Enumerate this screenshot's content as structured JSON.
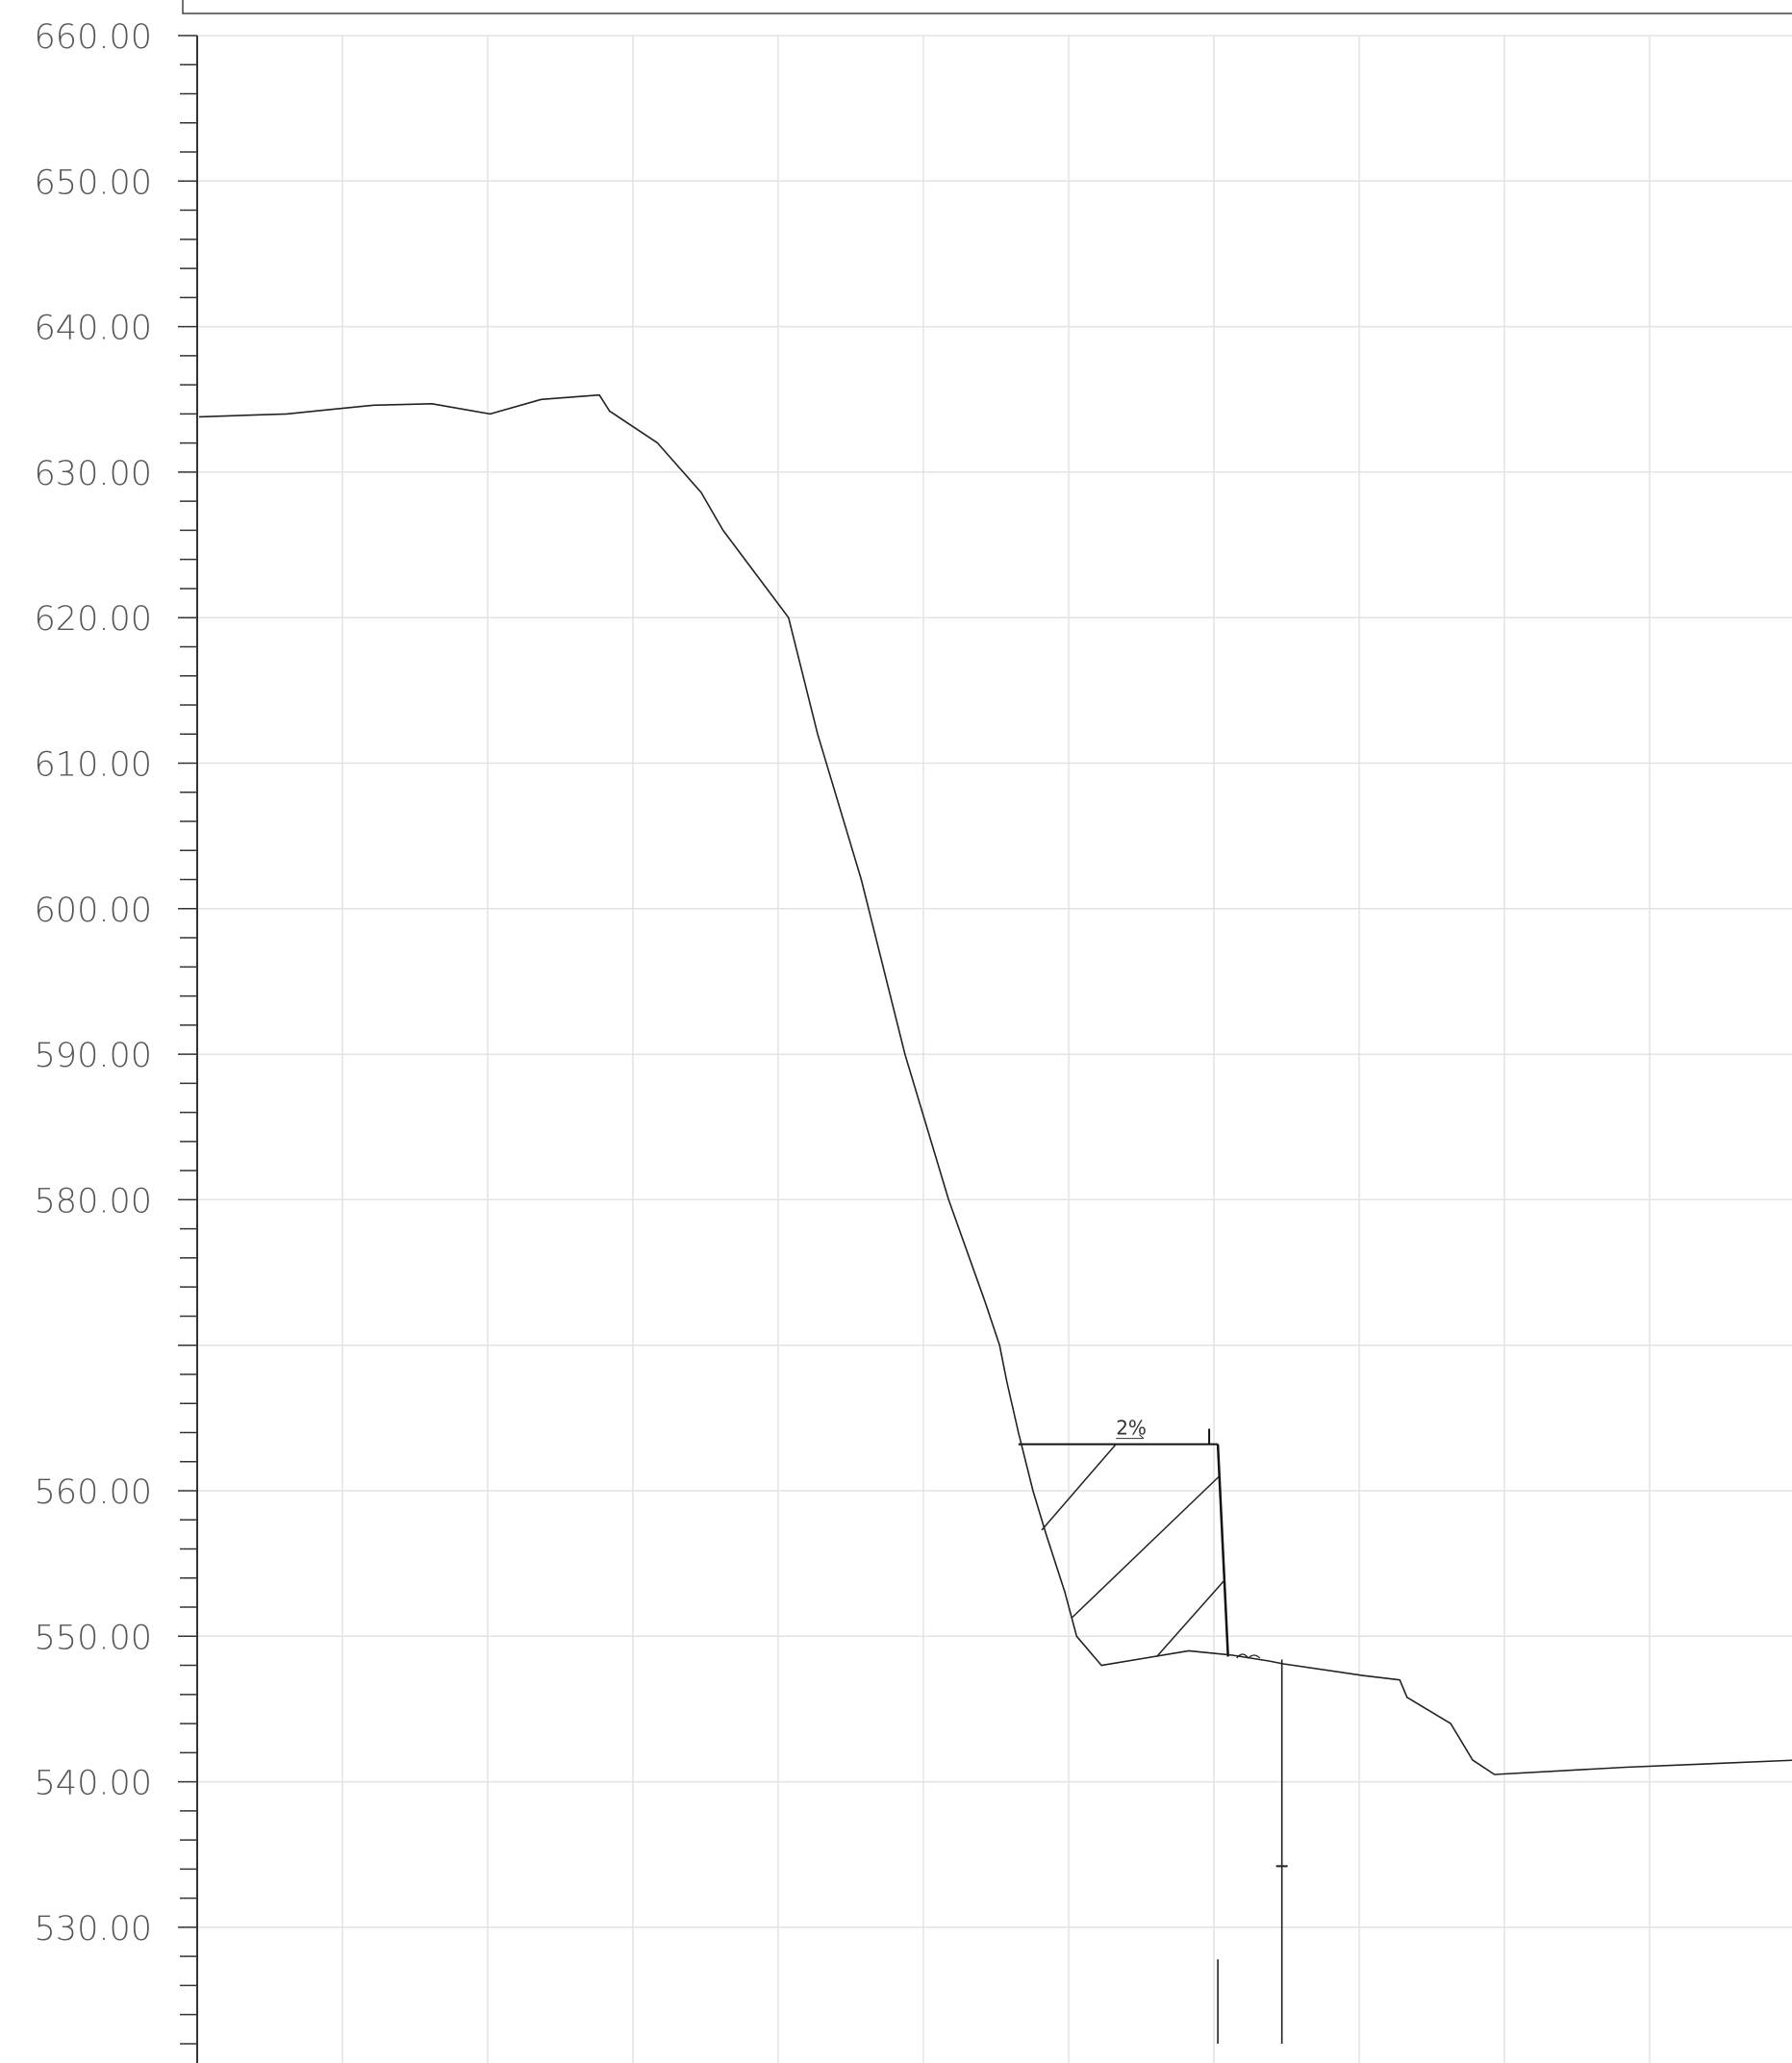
{
  "chart_data": {
    "type": "line",
    "title": "",
    "xlabel": "",
    "ylabel": "",
    "ylim": [
      522,
      662
    ],
    "y_ticks": [
      {
        "value": 660,
        "label": "660.00"
      },
      {
        "value": 650,
        "label": "650.00"
      },
      {
        "value": 640,
        "label": "640.00"
      },
      {
        "value": 630,
        "label": "630.00"
      },
      {
        "value": 620,
        "label": "620.00"
      },
      {
        "value": 610,
        "label": "610.00"
      },
      {
        "value": 600,
        "label": "600.00"
      },
      {
        "value": 590,
        "label": "590.00"
      },
      {
        "value": 580,
        "label": "580.00"
      },
      {
        "value": 570,
        "label": ""
      },
      {
        "value": 560,
        "label": "560.00"
      },
      {
        "value": 550,
        "label": "550.00"
      },
      {
        "value": 540,
        "label": "540.00"
      },
      {
        "value": 530,
        "label": "530.00"
      }
    ],
    "grid": true,
    "series": [
      {
        "points": [
          [
            0,
            633.8
          ],
          [
            6,
            634.0
          ],
          [
            9,
            634.3
          ],
          [
            12,
            634.6
          ],
          [
            16,
            634.7
          ],
          [
            20,
            634.0
          ],
          [
            23.5,
            635.0
          ],
          [
            27.5,
            635.3
          ],
          [
            28.2,
            634.2
          ],
          [
            31.5,
            632.0
          ],
          [
            34.5,
            628.6
          ],
          [
            36,
            626.0
          ],
          [
            40.5,
            620.0
          ],
          [
            42.5,
            612.0
          ],
          [
            45.5,
            602.0
          ],
          [
            46,
            600.0
          ],
          [
            48.5,
            590.0
          ],
          [
            51.5,
            580.0
          ],
          [
            54,
            573.0
          ],
          [
            55,
            570.0
          ],
          [
            55.5,
            567.5
          ],
          [
            56.3,
            564.0
          ],
          [
            57.3,
            560.0
          ],
          [
            58.2,
            557.0
          ],
          [
            59.5,
            553.0
          ],
          [
            60.3,
            550.0
          ],
          [
            62,
            548.0
          ],
          [
            65,
            548.5
          ],
          [
            68,
            549.0
          ],
          [
            71,
            548.7
          ],
          [
            73.5,
            548.3
          ],
          [
            74.5,
            548.1
          ],
          [
            80,
            547.3
          ],
          [
            82.5,
            547.0
          ],
          [
            83,
            545.8
          ],
          [
            86,
            544.0
          ],
          [
            87.5,
            541.5
          ],
          [
            89,
            540.5
          ],
          [
            98,
            541.0
          ],
          [
            110,
            541.5
          ]
        ]
      }
    ],
    "section": {
      "platform_elev": 563.2,
      "left_x": 56.3,
      "right_x": 70.0,
      "base_right_x": 70.7,
      "base_elev": 548.6,
      "slope_label": "2%"
    },
    "markers": [
      {
        "x": 74.4,
        "from": 548.4,
        "to": 522.0,
        "tick": 534.2
      },
      {
        "x": 70.0,
        "from": 527.8,
        "to": 522.0
      }
    ]
  }
}
